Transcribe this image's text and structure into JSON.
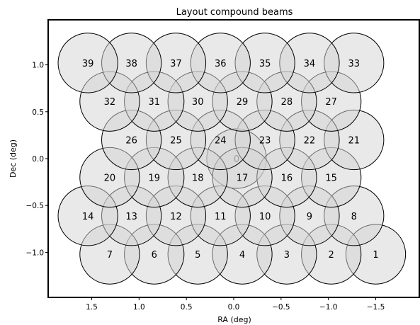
{
  "chart_data": {
    "type": "scatter",
    "title": "Layout compound beams",
    "xlabel": "RA (deg)",
    "ylabel": "Dec (deg)",
    "x_inverted": true,
    "xlim": [
      1.96,
      -1.96
    ],
    "ylim": [
      -1.48,
      1.48
    ],
    "xticks": [
      1.5,
      1.0,
      0.5,
      0.0,
      -0.5,
      -1.0,
      -1.5
    ],
    "xtick_labels": [
      "1.5",
      "1.0",
      "0.5",
      "0.0",
      "−0.5",
      "−1.0",
      "−1.5"
    ],
    "yticks": [
      1.0,
      0.5,
      0.0,
      -0.5,
      -1.0
    ],
    "ytick_labels": [
      "1.0",
      "0.5",
      "0.0",
      "−0.5",
      "−1.0"
    ],
    "beam_radius": 0.315,
    "beam_color": "#d3d3d3",
    "beams": [
      {
        "label": "0",
        "ra": -0.03,
        "dec": 0.0
      },
      {
        "label": "1",
        "ra": -1.5,
        "dec": -1.02
      },
      {
        "label": "2",
        "ra": -1.03,
        "dec": -1.02
      },
      {
        "label": "3",
        "ra": -0.56,
        "dec": -1.02
      },
      {
        "label": "4",
        "ra": -0.09,
        "dec": -1.02
      },
      {
        "label": "5",
        "ra": 0.38,
        "dec": -1.02
      },
      {
        "label": "6",
        "ra": 0.84,
        "dec": -1.02
      },
      {
        "label": "7",
        "ra": 1.31,
        "dec": -1.02
      },
      {
        "label": "8",
        "ra": -1.27,
        "dec": -0.61
      },
      {
        "label": "9",
        "ra": -0.8,
        "dec": -0.61
      },
      {
        "label": "10",
        "ra": -0.33,
        "dec": -0.61
      },
      {
        "label": "11",
        "ra": 0.14,
        "dec": -0.61
      },
      {
        "label": "12",
        "ra": 0.61,
        "dec": -0.61
      },
      {
        "label": "13",
        "ra": 1.08,
        "dec": -0.61
      },
      {
        "label": "14",
        "ra": 1.54,
        "dec": -0.61
      },
      {
        "label": "15",
        "ra": -1.03,
        "dec": -0.2
      },
      {
        "label": "16",
        "ra": -0.56,
        "dec": -0.2
      },
      {
        "label": "17",
        "ra": -0.09,
        "dec": -0.2
      },
      {
        "label": "18",
        "ra": 0.38,
        "dec": -0.2
      },
      {
        "label": "19",
        "ra": 0.84,
        "dec": -0.2
      },
      {
        "label": "20",
        "ra": 1.31,
        "dec": -0.2
      },
      {
        "label": "21",
        "ra": -1.27,
        "dec": 0.2
      },
      {
        "label": "22",
        "ra": -0.8,
        "dec": 0.2
      },
      {
        "label": "23",
        "ra": -0.33,
        "dec": 0.2
      },
      {
        "label": "24",
        "ra": 0.14,
        "dec": 0.2
      },
      {
        "label": "25",
        "ra": 0.61,
        "dec": 0.2
      },
      {
        "label": "26",
        "ra": 1.08,
        "dec": 0.2
      },
      {
        "label": "27",
        "ra": -1.03,
        "dec": 0.61
      },
      {
        "label": "28",
        "ra": -0.56,
        "dec": 0.61
      },
      {
        "label": "29",
        "ra": -0.09,
        "dec": 0.61
      },
      {
        "label": "30",
        "ra": 0.38,
        "dec": 0.61
      },
      {
        "label": "31",
        "ra": 0.84,
        "dec": 0.61
      },
      {
        "label": "32",
        "ra": 1.31,
        "dec": 0.61
      },
      {
        "label": "33",
        "ra": -1.27,
        "dec": 1.02
      },
      {
        "label": "34",
        "ra": -0.8,
        "dec": 1.02
      },
      {
        "label": "35",
        "ra": -0.33,
        "dec": 1.02
      },
      {
        "label": "36",
        "ra": 0.14,
        "dec": 1.02
      },
      {
        "label": "37",
        "ra": 0.61,
        "dec": 1.02
      },
      {
        "label": "38",
        "ra": 1.08,
        "dec": 1.02
      },
      {
        "label": "39",
        "ra": 1.54,
        "dec": 1.02
      }
    ]
  }
}
